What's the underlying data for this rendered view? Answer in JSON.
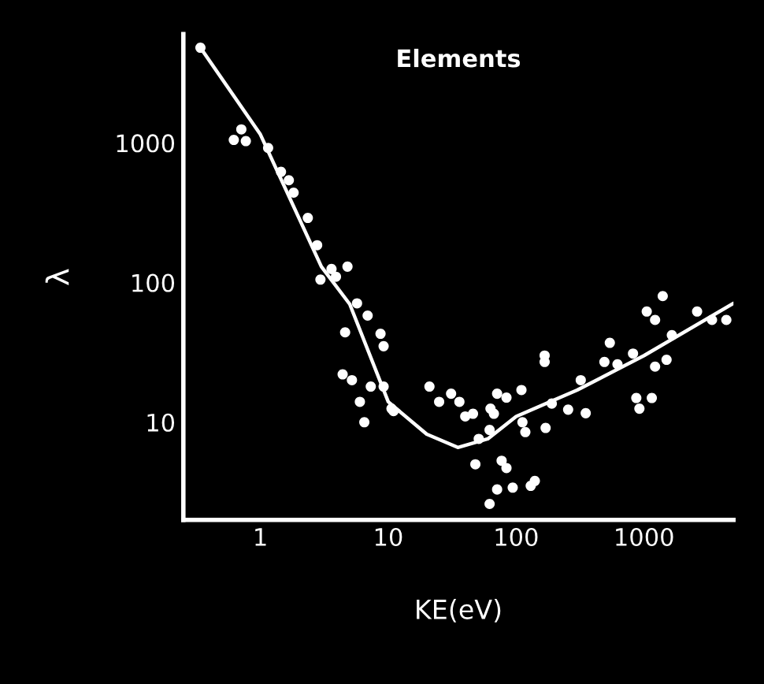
{
  "chart_data": {
    "type": "scatter",
    "title": "Elements",
    "xlabel": "KE(eV)",
    "ylabel": "λ",
    "log": "xy",
    "xlim": [
      0.25,
      5000
    ],
    "ylim": [
      2,
      6000
    ],
    "xticks": [
      1,
      10,
      100,
      1000
    ],
    "yticks": [
      10,
      100,
      1000
    ],
    "grid": false,
    "marker": "circle",
    "series": [
      {
        "color": "#ffffff",
        "x": [
          0.34,
          0.62,
          0.71,
          0.77,
          1.15,
          1.45,
          1.67,
          1.82,
          2.35,
          2.78,
          2.95,
          3.6,
          4.8,
          3.9,
          4.6,
          5.7,
          6.9,
          8.7,
          9.2,
          4.4,
          5.2,
          6.0,
          6.5,
          7.3,
          9.2,
          11,
          10.6,
          21,
          25,
          31,
          36,
          40,
          46,
          51,
          48,
          62,
          71,
          84,
          63,
          67,
          77,
          84,
          71,
          62,
          94,
          130,
          140,
          110,
          112,
          118,
          170,
          190,
          167,
          167,
          255,
          320,
          350,
          540,
          490,
          620,
          820,
          870,
          920,
          1150,
          1050,
          1220,
          1400,
          1220,
          1500,
          1650,
          2600,
          3400,
          4400
        ],
        "values": [
          4800,
          1050,
          1250,
          1030,
          920,
          620,
          540,
          440,
          290,
          185,
          105,
          125,
          130,
          110,
          44,
          71,
          58,
          43,
          35,
          22,
          20,
          14,
          10,
          18,
          18,
          12,
          12.5,
          18,
          14,
          16,
          14,
          11,
          11.5,
          7.6,
          5.0,
          8.8,
          16,
          15,
          12.5,
          11.5,
          5.3,
          4.7,
          3.3,
          2.6,
          3.4,
          3.5,
          3.8,
          17,
          10,
          8.5,
          9.1,
          13.6,
          30,
          27,
          12.3,
          20,
          11.6,
          37,
          27,
          26,
          31,
          14.9,
          12.5,
          14.9,
          62,
          54,
          80,
          25,
          28,
          42,
          62,
          54,
          54
        ]
      },
      {
        "type": "line",
        "color": "#ffffff",
        "marker": "none",
        "line_style": "solid",
        "x": [
          0.34,
          1,
          3,
          5,
          10,
          20,
          35,
          60,
          100,
          300,
          1000,
          5000
        ],
        "values": [
          4800,
          1150,
          130,
          70,
          14,
          8.2,
          6.6,
          7.6,
          11,
          17,
          30,
          71
        ]
      }
    ]
  }
}
